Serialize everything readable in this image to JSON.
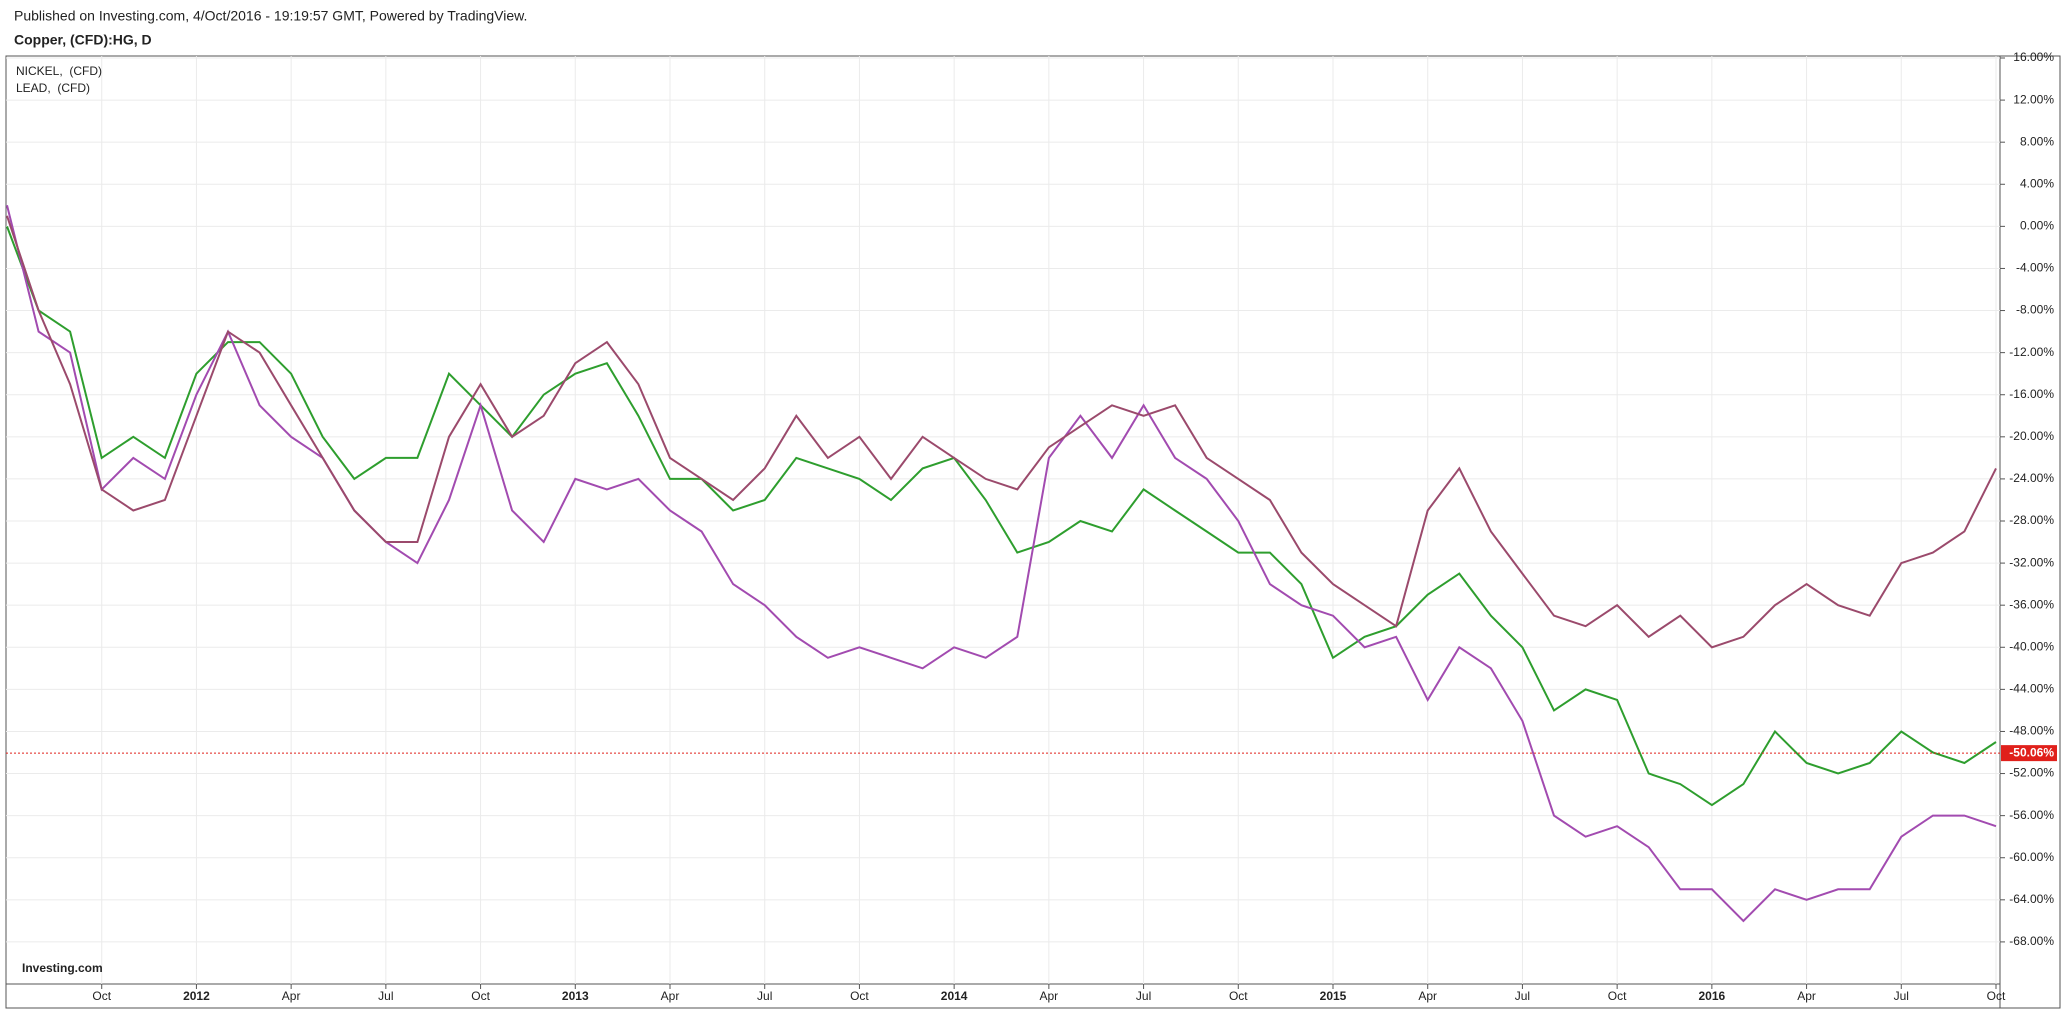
{
  "chart_data": {
    "type": "line",
    "header": "Published on Investing.com, 4/Oct/2016 - 19:19:57 GMT, Powered by TradingView.",
    "logo": "Investing.com",
    "categories": [
      null,
      null,
      null,
      "Oct",
      null,
      null,
      "2012",
      null,
      null,
      "Apr",
      null,
      null,
      "Jul",
      null,
      null,
      "Oct",
      null,
      null,
      "2013",
      null,
      null,
      "Apr",
      null,
      null,
      "Jul",
      null,
      null,
      "Oct",
      null,
      null,
      "2014",
      null,
      null,
      "Apr",
      null,
      null,
      "Jul",
      null,
      null,
      "Oct",
      null,
      null,
      "2015",
      null,
      null,
      "Apr",
      null,
      null,
      "Jul",
      null,
      null,
      "Oct",
      null,
      null,
      "2016",
      null,
      null,
      "Apr",
      null,
      null,
      "Jul",
      null,
      null,
      "Oct"
    ],
    "series": [
      {
        "name": "Copper, (CFD):HG, D",
        "color": "#2e9e2e",
        "values": [
          0,
          -8,
          -10,
          -22,
          -20,
          -22,
          -14,
          -11,
          -11,
          -14,
          -20,
          -24,
          -22,
          -22,
          -14,
          -17,
          -20,
          -16,
          -14,
          -13,
          -18,
          -24,
          -24,
          -27,
          -26,
          -22,
          -23,
          -24,
          -26,
          -23,
          -22,
          -26,
          -31,
          -30,
          -28,
          -29,
          -25,
          -27,
          -29,
          -31,
          -31,
          -34,
          -41,
          -39,
          -38,
          -35,
          -33,
          -37,
          -40,
          -46,
          -44,
          -45,
          -52,
          -53,
          -55,
          -53,
          -48,
          -51,
          -52,
          -51,
          -48,
          -50,
          -51,
          -49
        ]
      },
      {
        "name": "NICKEL,  (CFD)",
        "color": "#a24bb0",
        "values": [
          2,
          -10,
          -12,
          -25,
          -22,
          -24,
          -16,
          -10,
          -17,
          -20,
          -22,
          -27,
          -30,
          -32,
          -26,
          -17,
          -27,
          -30,
          -24,
          -25,
          -24,
          -27,
          -29,
          -34,
          -36,
          -39,
          -41,
          -40,
          -41,
          -42,
          -40,
          -41,
          -39,
          -22,
          -18,
          -22,
          -17,
          -22,
          -24,
          -28,
          -34,
          -36,
          -37,
          -40,
          -39,
          -45,
          -40,
          -42,
          -47,
          -56,
          -58,
          -57,
          -59,
          -63,
          -63,
          -66,
          -63,
          -64,
          -63,
          -63,
          -58,
          -56,
          -56,
          -57
        ]
      },
      {
        "name": "LEAD,  (CFD)",
        "color": "#9b4a6c",
        "values": [
          1,
          -8,
          -15,
          -25,
          -27,
          -26,
          -18,
          -10,
          -12,
          -17,
          -22,
          -27,
          -30,
          -30,
          -20,
          -15,
          -20,
          -18,
          -13,
          -11,
          -15,
          -22,
          -24,
          -26,
          -23,
          -18,
          -22,
          -20,
          -24,
          -20,
          -22,
          -24,
          -25,
          -21,
          -19,
          -17,
          -18,
          -17,
          -22,
          -24,
          -26,
          -31,
          -34,
          -36,
          -38,
          -27,
          -23,
          -29,
          -33,
          -37,
          -38,
          -36,
          -39,
          -37,
          -40,
          -39,
          -36,
          -34,
          -36,
          -37,
          -32,
          -31,
          -29,
          -23
        ]
      }
    ],
    "price_line": {
      "value": -50.06,
      "label": "-50.06%",
      "color": "#e0201b"
    },
    "ylim": [
      -72,
      16
    ],
    "yticks": [
      {
        "value": 16,
        "label": "16.00%"
      },
      {
        "value": 12,
        "label": "12.00%"
      },
      {
        "value": 8,
        "label": "8.00%"
      },
      {
        "value": 4,
        "label": "4.00%"
      },
      {
        "value": 0,
        "label": "0.00%"
      },
      {
        "value": -4,
        "label": "-4.00%"
      },
      {
        "value": -8,
        "label": "-8.00%"
      },
      {
        "value": -12,
        "label": "-12.00%"
      },
      {
        "value": -16,
        "label": "-16.00%"
      },
      {
        "value": -20,
        "label": "-20.00%"
      },
      {
        "value": -24,
        "label": "-24.00%"
      },
      {
        "value": -28,
        "label": "-28.00%"
      },
      {
        "value": -32,
        "label": "-32.00%"
      },
      {
        "value": -36,
        "label": "-36.00%"
      },
      {
        "value": -40,
        "label": "-40.00%"
      },
      {
        "value": -44,
        "label": "-44.00%"
      },
      {
        "value": -48,
        "label": "-48.00%"
      },
      {
        "value": -52,
        "label": "-52.00%"
      },
      {
        "value": -56,
        "label": "-56.00%"
      },
      {
        "value": -60,
        "label": "-60.00%"
      },
      {
        "value": -64,
        "label": "-64.00%"
      },
      {
        "value": -68,
        "label": "-68.00%"
      }
    ],
    "grid": true
  }
}
